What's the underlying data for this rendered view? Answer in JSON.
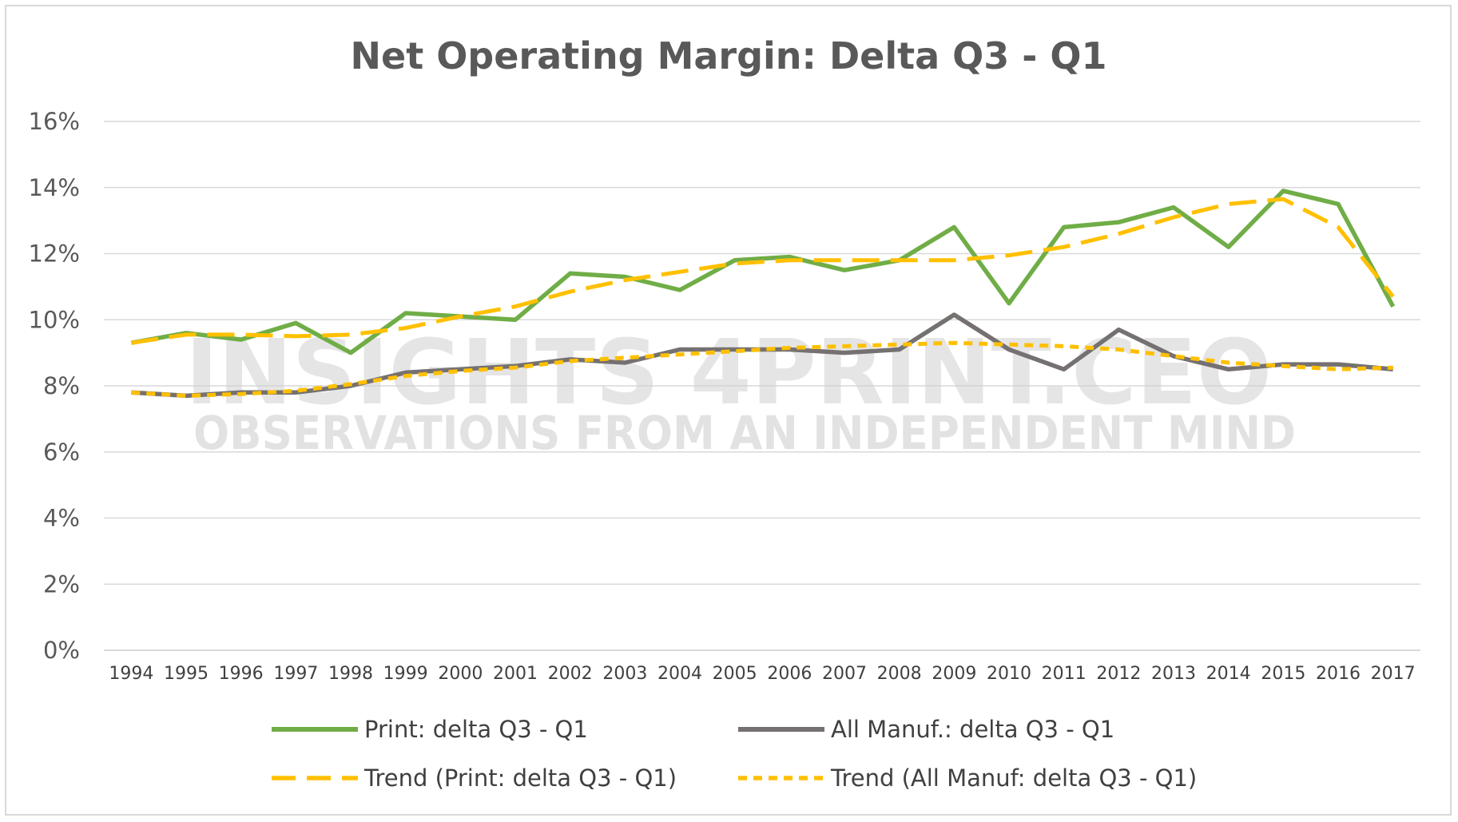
{
  "chart_data": {
    "type": "line",
    "title": "Net Operating Margin: Delta Q3 - Q1",
    "xlabel": "",
    "ylabel": "",
    "ylim": [
      0,
      16
    ],
    "y_ticks": [
      "0%",
      "2%",
      "4%",
      "6%",
      "8%",
      "10%",
      "12%",
      "14%",
      "16%"
    ],
    "y_tick_values": [
      0,
      2,
      4,
      6,
      8,
      10,
      12,
      14,
      16
    ],
    "grid": true,
    "legend_position": "bottom",
    "categories": [
      "1994",
      "1995",
      "1996",
      "1997",
      "1998",
      "1999",
      "2000",
      "2001",
      "2002",
      "2003",
      "2004",
      "2005",
      "2006",
      "2007",
      "2008",
      "2009",
      "2010",
      "2011",
      "2012",
      "2013",
      "2014",
      "2015",
      "2016",
      "2017"
    ],
    "series": [
      {
        "name": "Print: delta Q3 - Q1",
        "color": "#70ad47",
        "style": "solid",
        "values": [
          9.3,
          9.6,
          9.4,
          9.9,
          9.0,
          10.2,
          10.1,
          10.0,
          11.4,
          11.3,
          10.9,
          11.8,
          11.9,
          11.5,
          11.8,
          12.8,
          10.5,
          12.8,
          12.95,
          13.4,
          12.2,
          13.9,
          13.5,
          10.4
        ]
      },
      {
        "name": "All Manuf.: delta Q3 - Q1",
        "color": "#767171",
        "style": "solid",
        "values": [
          7.8,
          7.7,
          7.8,
          7.8,
          8.0,
          8.4,
          8.5,
          8.6,
          8.8,
          8.7,
          9.1,
          9.1,
          9.1,
          9.0,
          9.1,
          10.15,
          9.1,
          8.5,
          9.7,
          8.9,
          8.5,
          8.65,
          8.65,
          8.5
        ]
      },
      {
        "name": "Trend (Print: delta Q3 - Q1)",
        "color": "#ffc000",
        "style": "long-dash",
        "values": [
          9.3,
          9.55,
          9.55,
          9.5,
          9.55,
          9.75,
          10.1,
          10.4,
          10.85,
          11.2,
          11.45,
          11.7,
          11.8,
          11.8,
          11.8,
          11.8,
          11.95,
          12.2,
          12.6,
          13.1,
          13.5,
          13.65,
          12.8,
          10.7
        ]
      },
      {
        "name": "Trend (All Manuf: delta Q3 - Q1)",
        "color": "#ffc000",
        "style": "short-dash",
        "values": [
          7.8,
          7.7,
          7.75,
          7.85,
          8.05,
          8.3,
          8.45,
          8.55,
          8.75,
          8.85,
          8.95,
          9.05,
          9.15,
          9.2,
          9.25,
          9.3,
          9.25,
          9.2,
          9.1,
          8.9,
          8.7,
          8.6,
          8.5,
          8.55
        ]
      }
    ]
  },
  "watermark": {
    "line1": "INSIGHTS 4PRINT.CEO",
    "line2": "OBSERVATIONS FROM AN INDEPENDENT MIND"
  }
}
